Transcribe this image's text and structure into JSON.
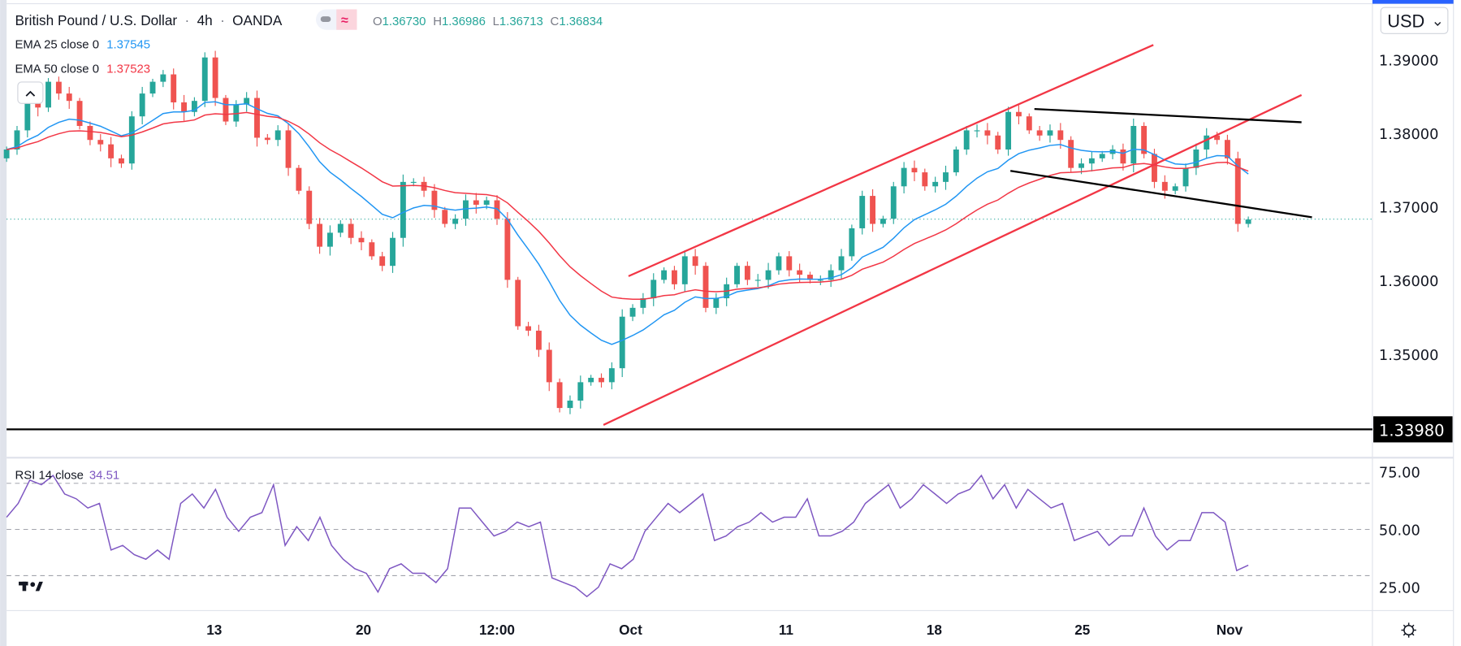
{
  "header": {
    "symbol": "British Pound / U.S. Dollar",
    "interval": "4h",
    "exchange": "OANDA",
    "sep": "·",
    "ohlc": [
      {
        "k": "O",
        "v": "1.36730"
      },
      {
        "k": "H",
        "v": "1.36986"
      },
      {
        "k": "L",
        "v": "1.36713"
      },
      {
        "k": "C",
        "v": "1.36834"
      }
    ]
  },
  "indicators": [
    {
      "label": "EMA 25 close 0",
      "value": "1.37545",
      "color": "#2196f3",
      "period": 25
    },
    {
      "label": "EMA 50 close 0",
      "value": "1.37523",
      "color": "#f23645",
      "period": 50
    }
  ],
  "rsi": {
    "label": "RSI 14 close",
    "value": "34.51",
    "color": "#7e57c2"
  },
  "currency_button": "USD",
  "colors": {
    "up": "#26a69a",
    "down": "#ef5350",
    "channel": "#f23645",
    "wedge": "#000000"
  },
  "chart_data": [
    {
      "type": "candlestick",
      "title": "British Pound / U.S. Dollar 4h OANDA",
      "ylim": [
        1.3335,
        1.3958
      ],
      "y_ticks": [
        "1.39000",
        "1.38000",
        "1.37000",
        "1.36000",
        "1.35000"
      ],
      "y_tick_values": [
        1.39,
        1.38,
        1.37,
        1.36,
        1.35
      ],
      "x_ticks": [
        {
          "label": "13",
          "index": 19.9
        },
        {
          "label": "20",
          "index": 34.2
        },
        {
          "label": "12:00",
          "index": 47
        },
        {
          "label": "Oct",
          "index": 59.8
        },
        {
          "label": "11",
          "index": 74.7
        },
        {
          "label": "18",
          "index": 88.9
        },
        {
          "label": "25",
          "index": 103.1
        },
        {
          "label": "Nov",
          "index": 117.2
        }
      ],
      "last_price": 1.36834,
      "support_level": {
        "value": 1.3398,
        "label": "1.33980"
      },
      "closes": [
        1.3778,
        1.3804,
        1.3842,
        1.3835,
        1.387,
        1.3854,
        1.3844,
        1.381,
        1.3791,
        1.3785,
        1.3766,
        1.3759,
        1.3823,
        1.3854,
        1.387,
        1.388,
        1.3842,
        1.3829,
        1.3844,
        1.3903,
        1.3848,
        1.3816,
        1.3839,
        1.3848,
        1.3794,
        1.3791,
        1.3804,
        1.3753,
        1.3722,
        1.3677,
        1.3646,
        1.3665,
        1.3677,
        1.3658,
        1.3652,
        1.3633,
        1.362,
        1.3658,
        1.3734,
        1.3734,
        1.3722,
        1.3696,
        1.3677,
        1.3684,
        1.3709,
        1.3703,
        1.3709,
        1.3684,
        1.3601,
        1.3538,
        1.3532,
        1.3506,
        1.3462,
        1.3427,
        1.3437,
        1.3462,
        1.3468,
        1.3462,
        1.3481,
        1.3551,
        1.3563,
        1.3576,
        1.3601,
        1.3614,
        1.3595,
        1.3633,
        1.362,
        1.3563,
        1.3576,
        1.3595,
        1.362,
        1.3601,
        1.3601,
        1.3614,
        1.3633,
        1.3614,
        1.3608,
        1.3601,
        1.3601,
        1.3614,
        1.3633,
        1.3671,
        1.3715,
        1.3677,
        1.3684,
        1.3728,
        1.3753,
        1.3747,
        1.3728,
        1.3734,
        1.3747,
        1.3778,
        1.3804,
        1.3804,
        1.3797,
        1.3778,
        1.3829,
        1.3823,
        1.3804,
        1.3797,
        1.3804,
        1.3791,
        1.3753,
        1.3759,
        1.3766,
        1.3772,
        1.3778,
        1.3759,
        1.381,
        1.3772,
        1.3734,
        1.3722,
        1.3728,
        1.3753,
        1.3778,
        1.3797,
        1.3791,
        1.3766,
        1.3677,
        1.3683
      ],
      "trendlines": [
        {
          "name": "channel-upper",
          "color": "#f23645",
          "from": [
            59.6,
            1.3606
          ],
          "to": [
            109.9,
            1.392
          ]
        },
        {
          "name": "channel-lower",
          "color": "#f23645",
          "from": [
            57.2,
            1.3404
          ],
          "to": [
            124.1,
            1.3852
          ]
        },
        {
          "name": "wedge-upper",
          "color": "#000000",
          "from": [
            98.5,
            1.3833
          ],
          "to": [
            124.1,
            1.3815
          ]
        },
        {
          "name": "wedge-lower",
          "color": "#000000",
          "from": [
            96.2,
            1.3749
          ],
          "to": [
            125.1,
            1.3686
          ]
        }
      ]
    },
    {
      "type": "line",
      "title": "RSI 14 close",
      "ylim": [
        17,
        77
      ],
      "y_ticks": [
        "75.00",
        "50.00",
        "25.00"
      ],
      "y_tick_values": [
        75,
        50,
        25
      ],
      "bands": [
        70,
        50,
        30
      ],
      "values": [
        55.3,
        61.3,
        71.4,
        69.4,
        73.4,
        65.4,
        63.3,
        59.3,
        61.3,
        41.1,
        43.1,
        39.1,
        37.1,
        41.1,
        37.1,
        61.3,
        65.4,
        59.3,
        67.4,
        55.3,
        49.2,
        55.3,
        57.3,
        69.4,
        43.1,
        51.2,
        45.2,
        55.3,
        43.1,
        37.1,
        33.0,
        31.0,
        22.9,
        33.0,
        35.1,
        31.0,
        31.0,
        27.0,
        33.0,
        59.3,
        59.3,
        53.2,
        47.2,
        49.2,
        53.2,
        51.2,
        53.2,
        29.0,
        27.0,
        25.0,
        20.9,
        25.0,
        35.1,
        33.0,
        37.1,
        49.2,
        55.3,
        61.3,
        57.3,
        61.3,
        65.4,
        45.2,
        47.2,
        51.2,
        53.2,
        57.3,
        53.2,
        55.3,
        55.3,
        63.3,
        47.2,
        47.2,
        49.2,
        53.2,
        61.3,
        65.4,
        69.4,
        59.3,
        63.3,
        69.4,
        65.4,
        61.3,
        65.4,
        67.4,
        73.4,
        63.3,
        69.4,
        59.3,
        67.4,
        63.3,
        59.3,
        61.3,
        45.2,
        47.2,
        49.2,
        43.1,
        47.2,
        47.2,
        59.3,
        47.2,
        41.1,
        45.2,
        45.2,
        57.3,
        57.3,
        53.2,
        32.2,
        34.5
      ]
    }
  ]
}
